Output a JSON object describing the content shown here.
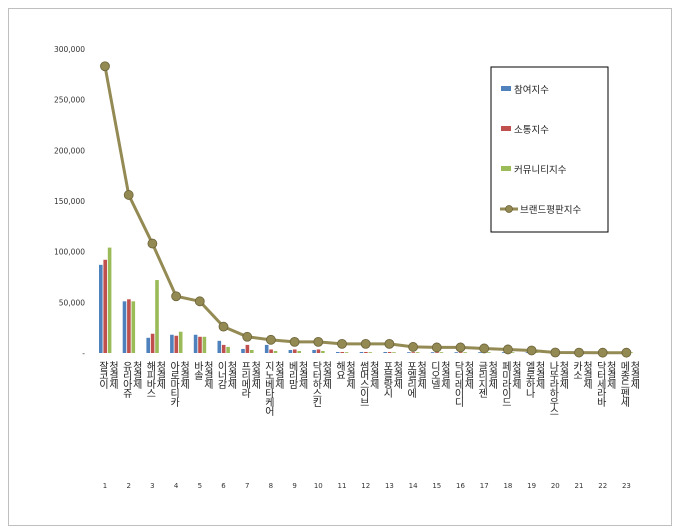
{
  "chart_data": {
    "type": "bar",
    "categories": [
      "잘코이 청결제",
      "유리아쥬 청결제",
      "해피바스 청결제",
      "아로마티카 청결제",
      "바솔 청결제",
      "이너감 청결제",
      "프리메라 청결제",
      "지노베타케어 청결제",
      "베리맘 청결제",
      "닥터하스킨 청결제",
      "해요 청결제",
      "썸머스이브 청결제",
      "포블랑시 청결제",
      "포엘리에 청결제",
      "디오넬 청결제",
      "닥터레이디 청결제",
      "글리지젠 청결제",
      "페미라이드 청결제",
      "엘로하나 청결제",
      "나뚜라하우스 청결제",
      "카소 청결제",
      "닥터세라바 청결제",
      "메종드펜세 청결제"
    ],
    "x_index_labels": [
      "1",
      "2",
      "3",
      "4",
      "5",
      "6",
      "7",
      "8",
      "9",
      "10",
      "11",
      "12",
      "13",
      "14",
      "15",
      "16",
      "17",
      "18",
      "19",
      "20",
      "21",
      "22",
      "23"
    ],
    "series": [
      {
        "name": "참여지수",
        "kind": "bar",
        "color": "#4f81bd",
        "values": [
          87000,
          51000,
          15000,
          18000,
          18000,
          12000,
          4000,
          8000,
          3000,
          3000,
          1000,
          1000,
          1000,
          500,
          300,
          300,
          200,
          200,
          200,
          100,
          100,
          100,
          100
        ]
      },
      {
        "name": "소통지수",
        "kind": "bar",
        "color": "#c0504d",
        "values": [
          92000,
          53000,
          19000,
          17000,
          16000,
          8000,
          8000,
          3500,
          3500,
          3500,
          1000,
          1000,
          1000,
          500,
          300,
          300,
          200,
          200,
          200,
          100,
          100,
          100,
          100
        ]
      },
      {
        "name": "커뮤니티지수",
        "kind": "bar",
        "color": "#9bbb59",
        "values": [
          104000,
          51000,
          72000,
          21000,
          16000,
          6000,
          3000,
          2000,
          2000,
          2000,
          500,
          500,
          500,
          300,
          200,
          200,
          200,
          200,
          200,
          100,
          100,
          100,
          100
        ]
      },
      {
        "name": "브랜드평판지수",
        "kind": "line",
        "color": "#948a54",
        "values": [
          283000,
          156000,
          108000,
          56000,
          51000,
          26000,
          16000,
          13000,
          11000,
          11000,
          9000,
          9000,
          9000,
          6000,
          5500,
          5500,
          4500,
          3500,
          2500,
          500,
          400,
          300,
          300
        ]
      }
    ],
    "yticks": [
      "300,000",
      "250,000",
      "200,000",
      "150,000",
      "100,000",
      "50,000",
      "-"
    ],
    "ylim": [
      0,
      300000
    ],
    "legend_position": "right-top",
    "grid": false
  }
}
